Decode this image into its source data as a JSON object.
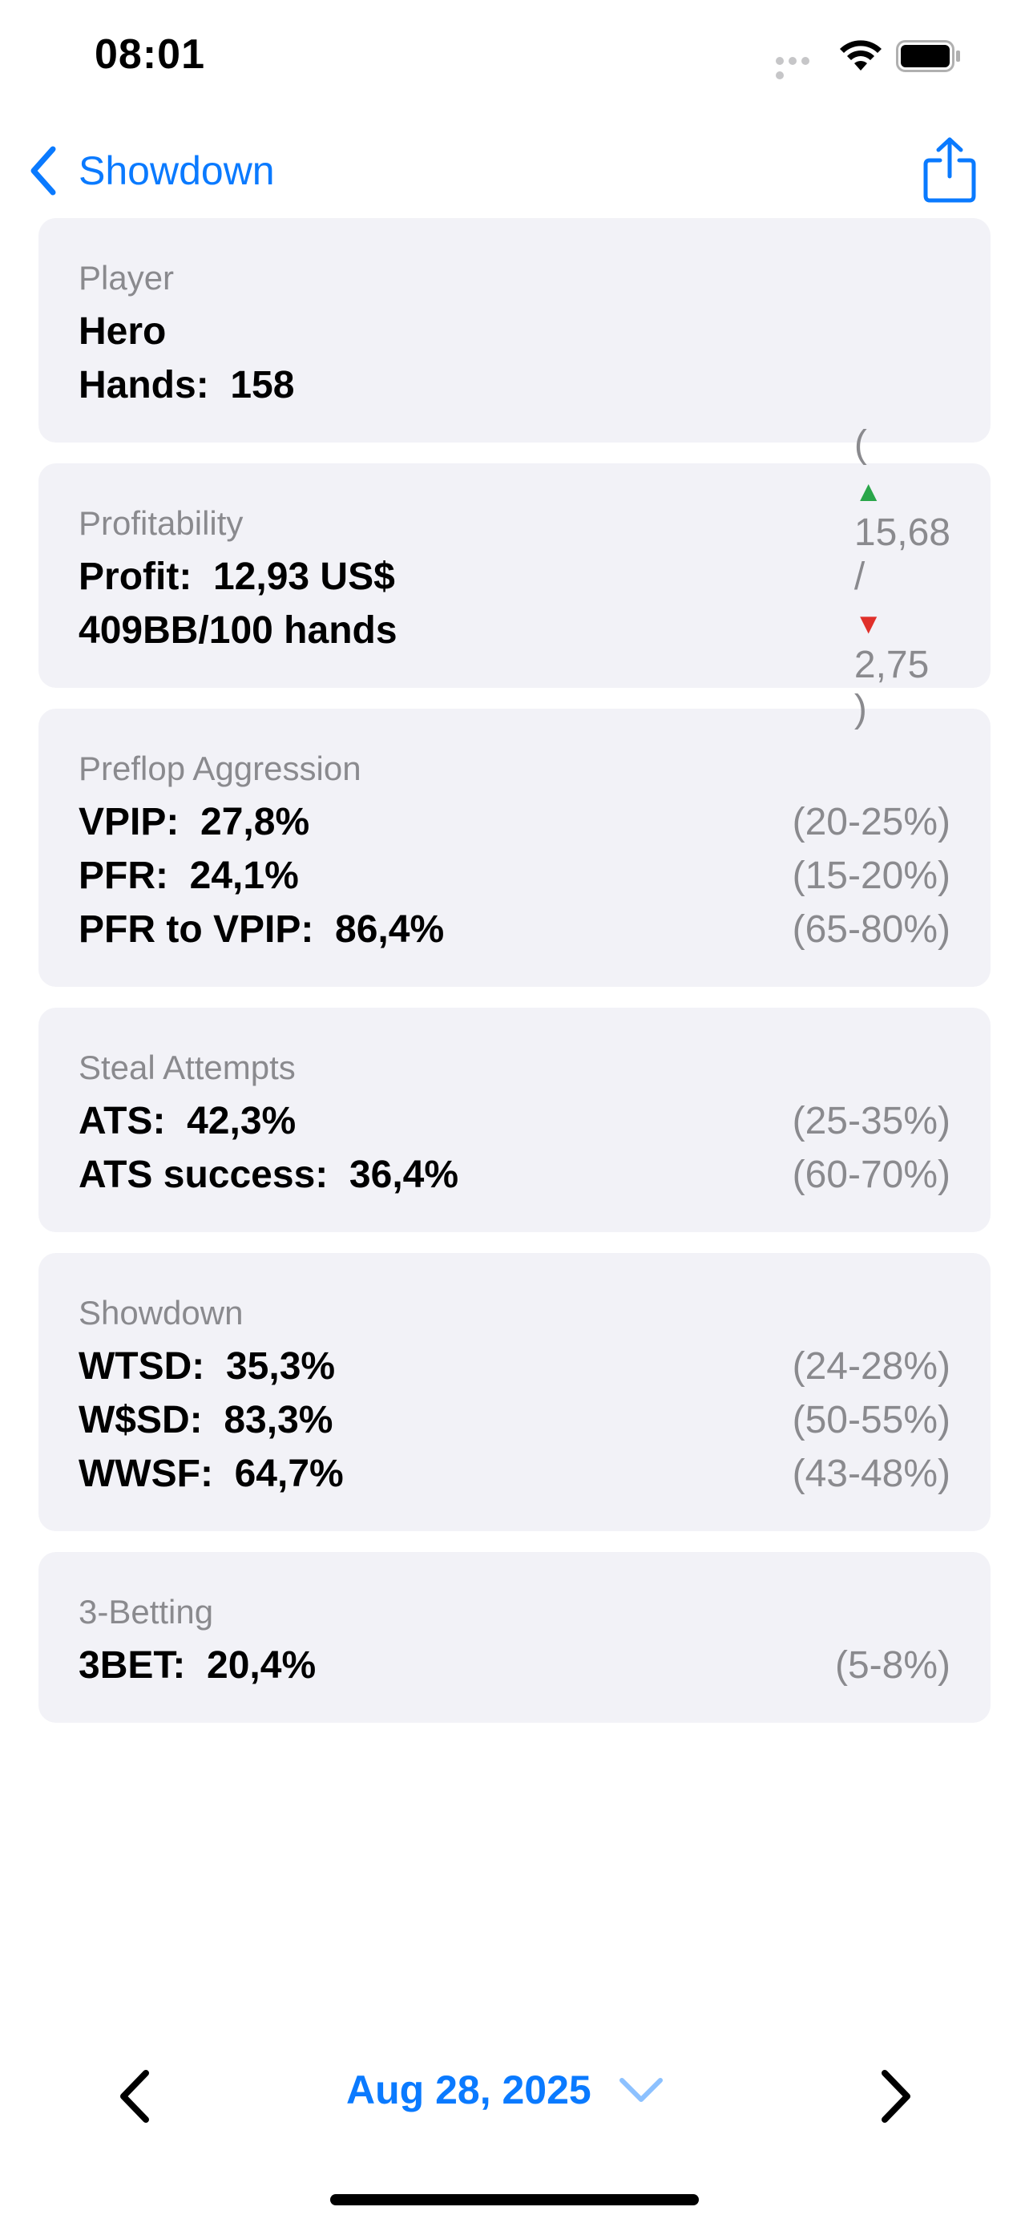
{
  "status_bar": {
    "time": "08:01"
  },
  "nav": {
    "back_label": "Showdown"
  },
  "cards": {
    "player": {
      "title": "Player",
      "name": "Hero",
      "hands": "Hands:  158"
    },
    "profitability": {
      "title": "Profitability",
      "profit": "Profit:  12,93 US$",
      "bb_rate": "409BB/100 hands",
      "open_paren": "(",
      "up_value": "15,68",
      "slash": "/",
      "down_value": "2,75",
      "close_paren": ")"
    },
    "preflop": {
      "title": "Preflop Aggression",
      "rows": [
        {
          "label": "VPIP:  27,8%",
          "range": "(20-25%)"
        },
        {
          "label": "PFR:  24,1%",
          "range": "(15-20%)"
        },
        {
          "label": "PFR to VPIP:  86,4%",
          "range": "(65-80%)"
        }
      ]
    },
    "steal": {
      "title": "Steal Attempts",
      "rows": [
        {
          "label": "ATS:  42,3%",
          "range": "(25-35%)"
        },
        {
          "label": "ATS success:  36,4%",
          "range": "(60-70%)"
        }
      ]
    },
    "showdown": {
      "title": "Showdown",
      "rows": [
        {
          "label": "WTSD:  35,3%",
          "range": "(24-28%)"
        },
        {
          "label": "W$SD:  83,3%",
          "range": "(50-55%)"
        },
        {
          "label": "WWSF:  64,7%",
          "range": "(43-48%)"
        }
      ]
    },
    "threebet": {
      "title": "3-Betting",
      "rows": [
        {
          "label": "3BET:  20,4%",
          "range": "(5-8%)"
        }
      ]
    }
  },
  "bottom": {
    "date": "Aug 28, 2025"
  },
  "icons": {
    "back": "chevron-left-icon",
    "share": "share-icon",
    "prev": "chevron-left-icon",
    "next": "chevron-right-icon",
    "date": "chevron-down-icon",
    "up": "triangle-up-icon",
    "down": "triangle-down-icon"
  },
  "colors": {
    "accent": "#0a7aff",
    "card_bg": "#f2f2f7",
    "secondary_text": "#8a8a8e",
    "up": "#2aa64a",
    "down": "#e0302a"
  }
}
